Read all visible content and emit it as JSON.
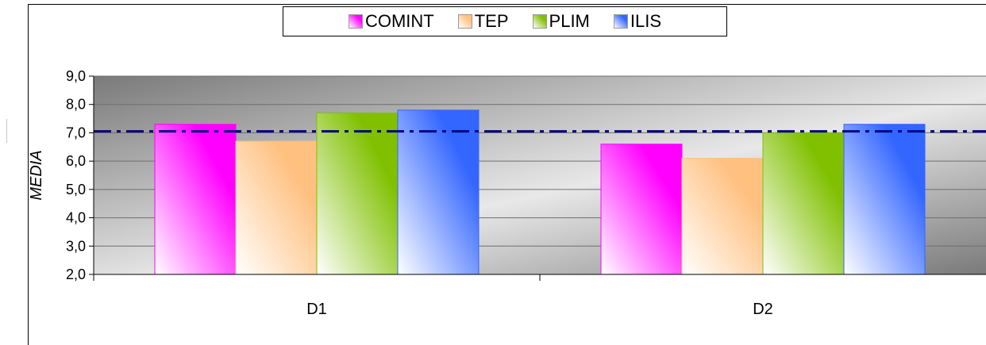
{
  "chart_data": {
    "type": "bar",
    "categories": [
      "D1",
      "D2"
    ],
    "series": [
      {
        "name": "COMINT",
        "values": [
          7.3,
          6.6
        ],
        "color": "#ff00ff"
      },
      {
        "name": "TEP",
        "values": [
          6.7,
          6.1
        ],
        "color": "#ffc080"
      },
      {
        "name": "PLIM",
        "values": [
          7.7,
          7.0
        ],
        "color": "#80c000"
      },
      {
        "name": "ILIS",
        "values": [
          7.8,
          7.3
        ],
        "color": "#3366ff"
      }
    ],
    "reference_line": {
      "value": 7.05,
      "style": "dash-dot",
      "color": "#000080"
    },
    "ylabel": "MEDIA",
    "xlabel": "",
    "ylim": [
      2.0,
      9.0
    ],
    "yticks": [
      "2,0",
      "3,0",
      "4,0",
      "5,0",
      "6,0",
      "7,0",
      "8,0",
      "9,0"
    ],
    "grid": true,
    "legend": "top-center"
  }
}
